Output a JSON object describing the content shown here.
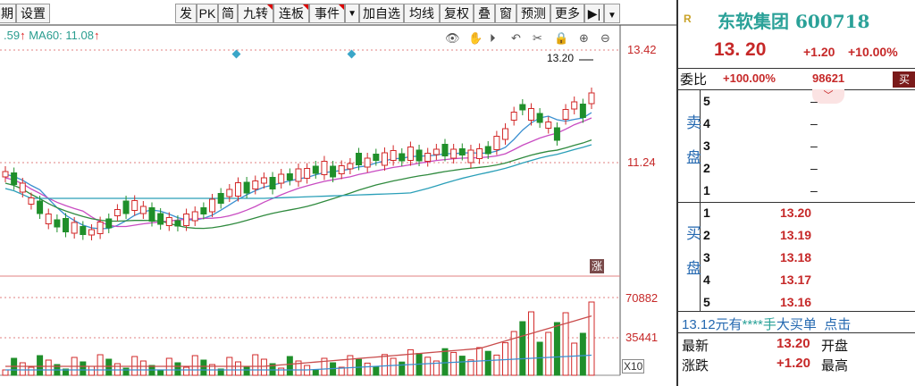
{
  "toolbar": {
    "items": [
      "期",
      "设置",
      "发",
      "PK",
      "简",
      "九转",
      "连板",
      "事件",
      "",
      "加自选",
      "均线",
      "复权",
      "叠",
      "窗",
      "预测",
      "更多",
      "",
      ""
    ]
  },
  "ma_legend": {
    "ma_a_value": ".59",
    "ma_a_arrow": "↑",
    "ma60_label": "MA60: 11.08",
    "ma60_arrow": "↑"
  },
  "chart": {
    "price_label": "13.20",
    "y_high": "13.42",
    "y_mid": "11.24",
    "vol_high": "70882",
    "vol_mid": "35441",
    "zhang_label": "涨",
    "unit_label": "X10"
  },
  "colors": {
    "up": "#d22828",
    "down": "#1f8f2a",
    "accent": "#2aa198",
    "ma_blue": "#3a8fd0"
  },
  "stock": {
    "r_icon": "R",
    "name": "东软集团",
    "code": "600718",
    "price": "13. 20",
    "change": "+1.20",
    "pct": "+10.00%"
  },
  "weibi": {
    "label": "委比",
    "pct": "+100.00%",
    "num": "98621",
    "button": "买"
  },
  "sell": {
    "side": "卖盘",
    "rows": [
      {
        "lv": "5",
        "val": "–"
      },
      {
        "lv": "4",
        "val": "–"
      },
      {
        "lv": "3",
        "val": "–"
      },
      {
        "lv": "2",
        "val": "–"
      },
      {
        "lv": "1",
        "val": "–"
      }
    ]
  },
  "buy": {
    "side": "买盘",
    "rows": [
      {
        "lv": "1",
        "val": "13.20"
      },
      {
        "lv": "2",
        "val": "13.19"
      },
      {
        "lv": "3",
        "val": "13.18"
      },
      {
        "lv": "4",
        "val": "13.17"
      },
      {
        "lv": "5",
        "val": "13.16"
      }
    ]
  },
  "big_order": {
    "price": "13.12元有",
    "stars": "****手",
    "label": "大买单",
    "tail": "点击"
  },
  "quotes": [
    {
      "label": "最新",
      "value": "13.20",
      "label2": "开盘"
    },
    {
      "label": "涨跌",
      "value": "+1.20",
      "label2": "最高"
    }
  ]
}
